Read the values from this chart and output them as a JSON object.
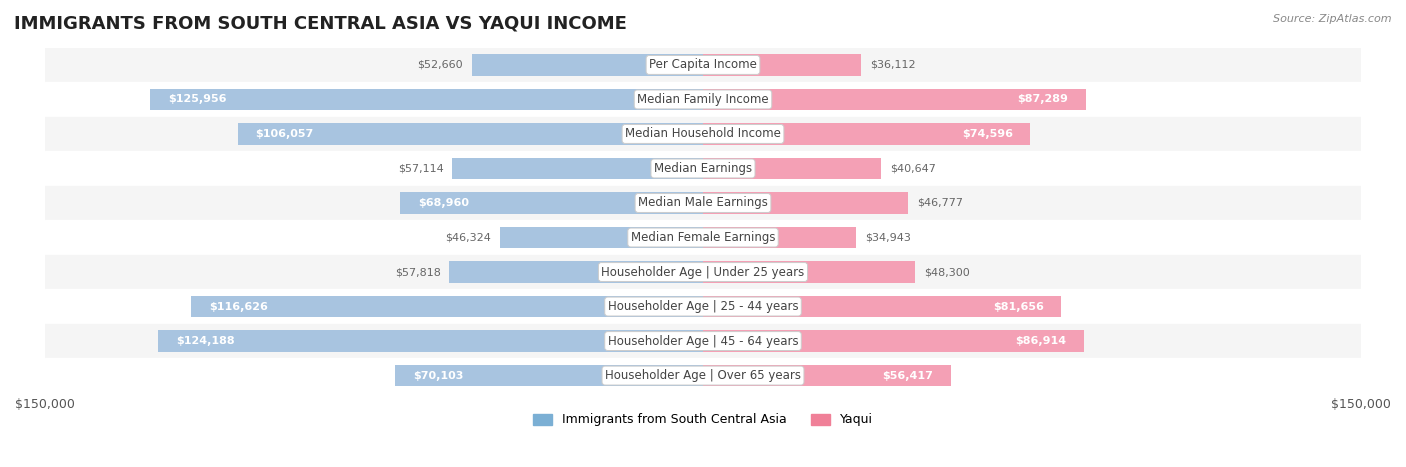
{
  "title": "IMMIGRANTS FROM SOUTH CENTRAL ASIA VS YAQUI INCOME",
  "source": "Source: ZipAtlas.com",
  "categories": [
    "Per Capita Income",
    "Median Family Income",
    "Median Household Income",
    "Median Earnings",
    "Median Male Earnings",
    "Median Female Earnings",
    "Householder Age | Under 25 years",
    "Householder Age | 25 - 44 years",
    "Householder Age | 45 - 64 years",
    "Householder Age | Over 65 years"
  ],
  "left_values": [
    52660,
    125956,
    106057,
    57114,
    68960,
    46324,
    57818,
    116626,
    124188,
    70103
  ],
  "right_values": [
    36112,
    87289,
    74596,
    40647,
    46777,
    34943,
    48300,
    81656,
    86914,
    56417
  ],
  "left_color": "#a8c4e0",
  "right_color": "#f4a0b5",
  "left_label_color": "#5a8bbf",
  "right_label_color": "#e06080",
  "center_label_bg": "#f0f0f0",
  "max_val": 150000,
  "left_legend_color": "#7bafd4",
  "right_legend_color": "#f08098",
  "legend_left": "Immigrants from South Central Asia",
  "legend_right": "Yaqui",
  "bg_row_color": "#f5f5f5",
  "bg_row_alt_color": "#ffffff",
  "title_fontsize": 13,
  "label_fontsize": 8.5,
  "value_fontsize": 8,
  "axis_label": "$150,000"
}
